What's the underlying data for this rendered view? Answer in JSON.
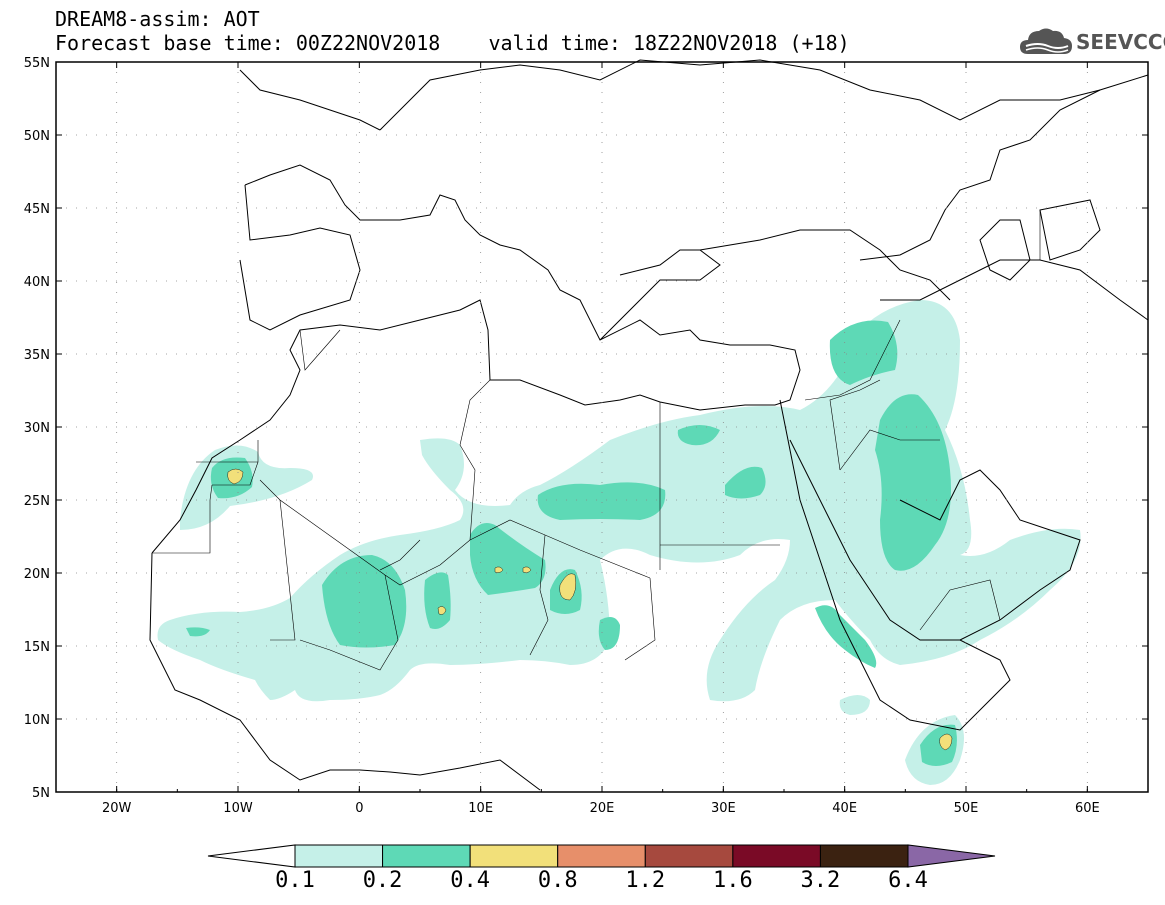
{
  "title": {
    "line1": "DREAM8-assim: AOT",
    "line2": "Forecast base time: 00Z22NOV2018",
    "valid": "valid time: 18Z22NOV2018 (+18)"
  },
  "logo": {
    "text": "SEEVCCC",
    "icon": "cloud-logo-icon"
  },
  "map": {
    "extent": {
      "lon": [
        -25,
        65
      ],
      "lat": [
        5,
        55
      ]
    },
    "lat_ticks": [
      {
        "value": 55,
        "label": "55N"
      },
      {
        "value": 50,
        "label": "50N"
      },
      {
        "value": 45,
        "label": "45N"
      },
      {
        "value": 40,
        "label": "40N"
      },
      {
        "value": 35,
        "label": "35N"
      },
      {
        "value": 30,
        "label": "30N"
      },
      {
        "value": 25,
        "label": "25N"
      },
      {
        "value": 20,
        "label": "20N"
      },
      {
        "value": 15,
        "label": "15N"
      },
      {
        "value": 10,
        "label": "10N"
      },
      {
        "value": 5,
        "label": "5N"
      }
    ],
    "lon_ticks": [
      {
        "value": -20,
        "label": "20W"
      },
      {
        "value": -10,
        "label": "10W"
      },
      {
        "value": 0,
        "label": "0"
      },
      {
        "value": 10,
        "label": "10E"
      },
      {
        "value": 20,
        "label": "20E"
      },
      {
        "value": 30,
        "label": "30E"
      },
      {
        "value": 40,
        "label": "40E"
      },
      {
        "value": 50,
        "label": "50E"
      },
      {
        "value": 60,
        "label": "60E"
      }
    ],
    "grid": "dotted"
  },
  "colorbar": {
    "labels": [
      "0.1",
      "0.2",
      "0.4",
      "0.8",
      "1.2",
      "1.6",
      "3.2",
      "6.4"
    ],
    "colors": [
      "#ffffff",
      "#c5f0e8",
      "#5ed9b6",
      "#f2e07a",
      "#e78f6a",
      "#a6493e",
      "#7a0a26",
      "#3b2211",
      "#8a67a6"
    ]
  }
}
